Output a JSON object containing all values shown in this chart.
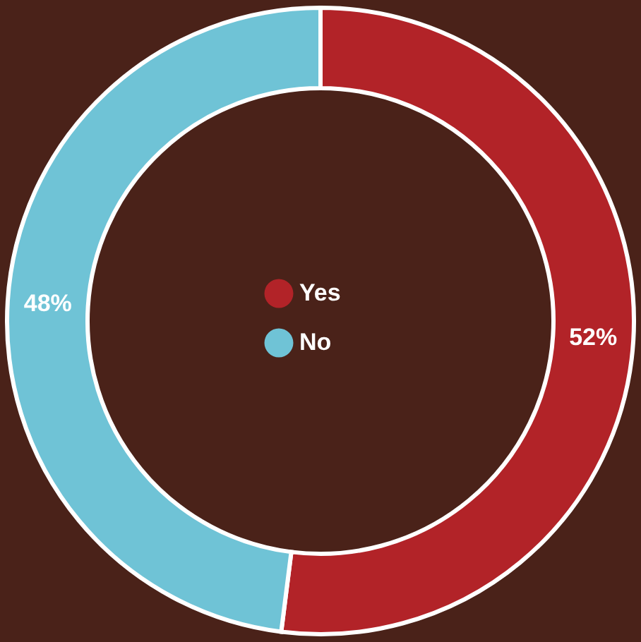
{
  "chart_data": {
    "type": "donut",
    "categories": [
      "Yes",
      "No"
    ],
    "values": [
      52,
      48
    ],
    "colors": [
      "#b22328",
      "#6fc3d6"
    ],
    "value_labels": [
      "52%",
      "48%"
    ],
    "legend": "center"
  }
}
